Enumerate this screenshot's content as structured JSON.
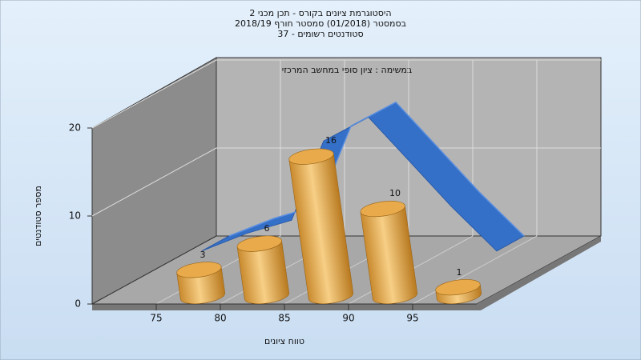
{
  "title_lines": [
    "היסטוגרמת ציונים בקורס - תכן מכני 2",
    "בסמסטר  (01/2018)  סמסטר חורף 2018/19",
    "סטודנטים רשומים - 37"
  ],
  "chart_data": {
    "type": "histogram",
    "annotation": "במשימה : ציון סופי במחשב המרכזי",
    "x_label": "טווח ציונים",
    "y_label": "מספר סטודנטים",
    "bins": [
      75,
      80,
      85,
      90,
      95,
      100
    ],
    "values": [
      3,
      6,
      16,
      10,
      1
    ],
    "color": "#e0a040",
    "curve": {
      "x": [
        71,
        74.5,
        78,
        80.5,
        84,
        87,
        90.5,
        94
      ],
      "values": [
        0,
        2,
        3.5,
        12.5,
        15.2,
        10.5,
        5,
        0
      ],
      "color": "#3570c8"
    },
    "xlim": [
      70,
      100
    ],
    "xticks": [
      75,
      80,
      85,
      90,
      95
    ],
    "ylim": [
      0,
      20
    ],
    "yticks": [
      0,
      10,
      20
    ],
    "grid": true
  }
}
